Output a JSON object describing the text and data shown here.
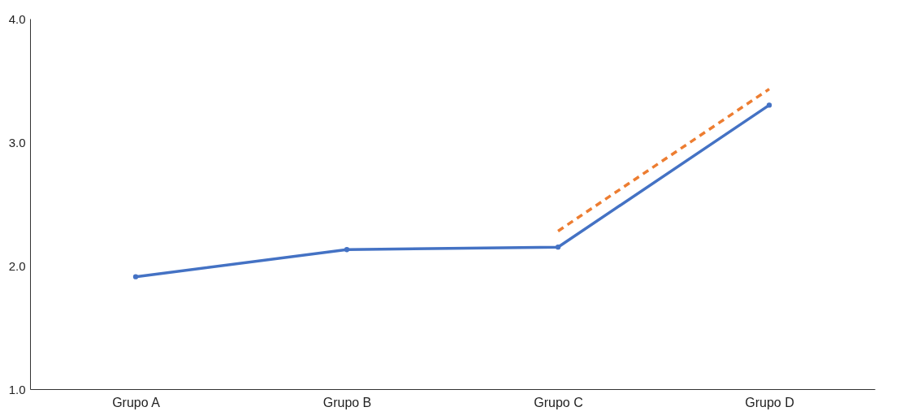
{
  "chart_data": {
    "type": "line",
    "categories": [
      "Grupo A",
      "Grupo B",
      "Grupo C",
      "Grupo D"
    ],
    "series": [
      {
        "color": "#4472c4",
        "values": [
          1.91,
          2.13,
          2.15,
          3.3
        ],
        "marker": "circle",
        "line_style": "solid"
      },
      {
        "color": "#ed7d31",
        "values": [
          null,
          null,
          2.28,
          3.43
        ],
        "marker": "none",
        "line_style": "dashed"
      }
    ],
    "ylim": [
      1.0,
      4.0
    ],
    "yticks": [
      {
        "value": 1,
        "label": "1.0"
      },
      {
        "value": 2,
        "label": "2.0"
      },
      {
        "value": 3,
        "label": "3.0"
      },
      {
        "value": 4,
        "label": "4.0"
      }
    ],
    "grid": false
  }
}
